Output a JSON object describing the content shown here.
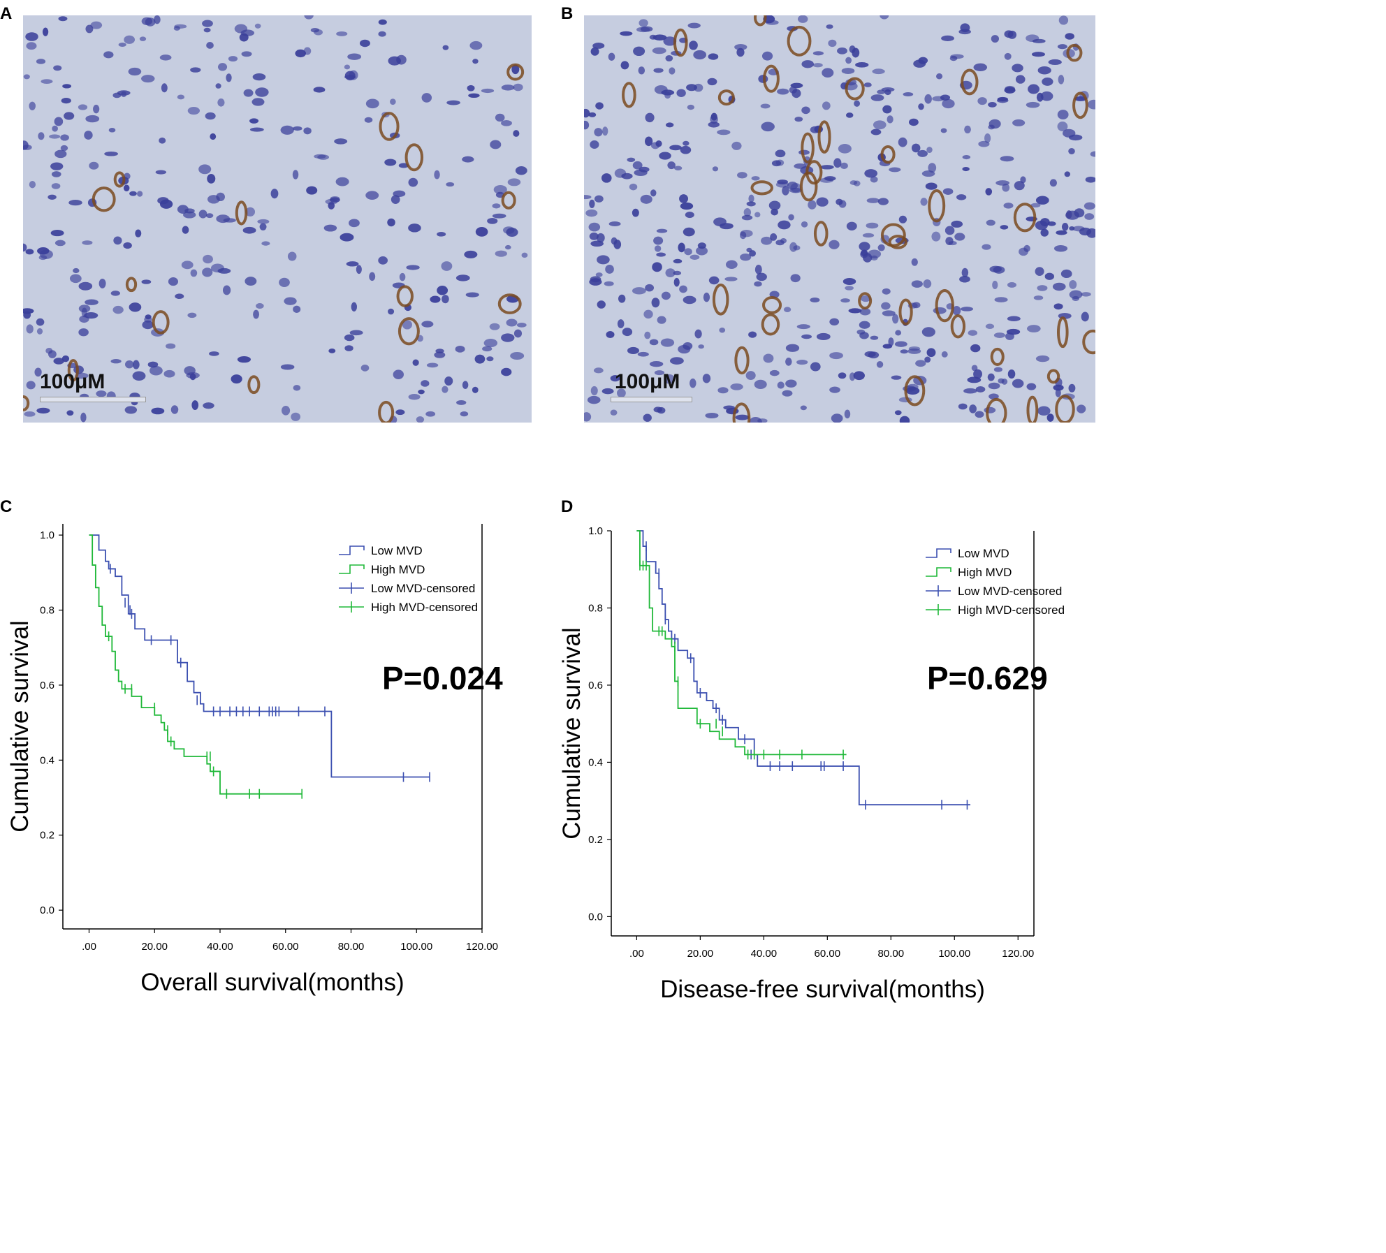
{
  "panels": {
    "A": {
      "letter": "A",
      "scale_label": "100μM"
    },
    "B": {
      "letter": "B",
      "scale_label": "100μM"
    },
    "C": {
      "letter": "C"
    },
    "D": {
      "letter": "D"
    }
  },
  "colors": {
    "low_mvd": "#3b4fb0",
    "high_mvd": "#1fb838",
    "tissue_bg": "#c6cde0",
    "nucleus": "#3a3f9a",
    "vessel": "#7a4a1e"
  },
  "chart_data": [
    {
      "type": "line",
      "subtype": "kaplan-meier",
      "xlabel": "Overall survival(months)",
      "ylabel": "Cumulative survival",
      "xlim": [
        -8,
        120
      ],
      "ylim": [
        -0.05,
        1.03
      ],
      "xticks": [
        0,
        20,
        40,
        60,
        80,
        100,
        120
      ],
      "xtick_labels": [
        ".00",
        "20.00",
        "40.00",
        "60.00",
        "80.00",
        "100.00",
        "120.00"
      ],
      "yticks": [
        0,
        0.2,
        0.4,
        0.6,
        0.8,
        1.0
      ],
      "ytick_labels": [
        "0.0",
        "0.2",
        "0.4",
        "0.6",
        "0.8",
        "1.0"
      ],
      "p_value_text": "P=0.024",
      "legend": {
        "position": "top-right",
        "entries": [
          "Low MVD",
          "High MVD",
          "Low MVD-censored",
          "High MVD-censored"
        ]
      },
      "series": [
        {
          "name": "Low MVD",
          "color_key": "low_mvd",
          "steps": [
            [
              0,
              1.0
            ],
            [
              3,
              0.96
            ],
            [
              5,
              0.93
            ],
            [
              6,
              0.91
            ],
            [
              8,
              0.89
            ],
            [
              10,
              0.84
            ],
            [
              12,
              0.79
            ],
            [
              14,
              0.75
            ],
            [
              17,
              0.72
            ],
            [
              27,
              0.66
            ],
            [
              30,
              0.61
            ],
            [
              32,
              0.58
            ],
            [
              34,
              0.55
            ],
            [
              35,
              0.53
            ],
            [
              74,
              0.355
            ],
            [
              104,
              0.355
            ]
          ],
          "censored": [
            [
              6.5,
              0.91
            ],
            [
              11,
              0.82
            ],
            [
              12.5,
              0.8
            ],
            [
              13,
              0.79
            ],
            [
              19,
              0.72
            ],
            [
              25,
              0.72
            ],
            [
              28,
              0.66
            ],
            [
              33,
              0.56
            ],
            [
              38,
              0.53
            ],
            [
              40,
              0.53
            ],
            [
              43,
              0.53
            ],
            [
              45,
              0.53
            ],
            [
              47,
              0.53
            ],
            [
              49,
              0.53
            ],
            [
              52,
              0.53
            ],
            [
              55,
              0.53
            ],
            [
              56,
              0.53
            ],
            [
              57,
              0.53
            ],
            [
              58,
              0.53
            ],
            [
              64,
              0.53
            ],
            [
              72,
              0.53
            ],
            [
              96,
              0.355
            ],
            [
              104,
              0.355
            ]
          ]
        },
        {
          "name": "High MVD",
          "color_key": "high_mvd",
          "steps": [
            [
              0,
              1.0
            ],
            [
              1,
              0.92
            ],
            [
              2,
              0.86
            ],
            [
              3,
              0.81
            ],
            [
              4,
              0.76
            ],
            [
              5,
              0.73
            ],
            [
              7,
              0.69
            ],
            [
              8,
              0.64
            ],
            [
              9,
              0.61
            ],
            [
              10,
              0.59
            ],
            [
              13,
              0.57
            ],
            [
              16,
              0.54
            ],
            [
              20,
              0.52
            ],
            [
              22,
              0.5
            ],
            [
              23,
              0.48
            ],
            [
              24,
              0.45
            ],
            [
              26,
              0.43
            ],
            [
              29,
              0.41
            ],
            [
              36,
              0.39
            ],
            [
              37,
              0.37
            ],
            [
              40,
              0.31
            ],
            [
              65,
              0.31
            ]
          ],
          "censored": [
            [
              6,
              0.73
            ],
            [
              11,
              0.59
            ],
            [
              13,
              0.59
            ],
            [
              20,
              0.54
            ],
            [
              24,
              0.48
            ],
            [
              25,
              0.45
            ],
            [
              36,
              0.41
            ],
            [
              37,
              0.41
            ],
            [
              38,
              0.37
            ],
            [
              42,
              0.31
            ],
            [
              49,
              0.31
            ],
            [
              52,
              0.31
            ],
            [
              65,
              0.31
            ]
          ]
        }
      ]
    },
    {
      "type": "line",
      "subtype": "kaplan-meier",
      "xlabel": "Disease-free survival(months)",
      "ylabel": "Cumulative survival",
      "xlim": [
        -8,
        125
      ],
      "ylim": [
        -0.05,
        1.0
      ],
      "xticks": [
        0,
        20,
        40,
        60,
        80,
        100,
        120
      ],
      "xtick_labels": [
        ".00",
        "20.00",
        "40.00",
        "60.00",
        "80.00",
        "100.00",
        "120.00"
      ],
      "yticks": [
        0,
        0.2,
        0.4,
        0.6,
        0.8,
        1.0
      ],
      "ytick_labels": [
        "0.0",
        "0.2",
        "0.4",
        "0.6",
        "0.8",
        "1.0"
      ],
      "p_value_text": "P=0.629",
      "legend": {
        "position": "top-right",
        "entries": [
          "Low MVD",
          "High MVD",
          "Low MVD-censored",
          "High MVD-censored"
        ]
      },
      "series": [
        {
          "name": "Low MVD",
          "color_key": "low_mvd",
          "steps": [
            [
              0,
              1.0
            ],
            [
              2,
              0.96
            ],
            [
              3,
              0.92
            ],
            [
              6,
              0.89
            ],
            [
              7,
              0.85
            ],
            [
              8,
              0.81
            ],
            [
              9,
              0.77
            ],
            [
              10,
              0.74
            ],
            [
              11,
              0.72
            ],
            [
              13,
              0.69
            ],
            [
              16,
              0.67
            ],
            [
              18,
              0.61
            ],
            [
              19,
              0.58
            ],
            [
              22,
              0.56
            ],
            [
              24,
              0.54
            ],
            [
              26,
              0.51
            ],
            [
              28,
              0.49
            ],
            [
              32,
              0.46
            ],
            [
              37,
              0.42
            ],
            [
              38,
              0.39
            ],
            [
              70,
              0.29
            ],
            [
              105,
              0.29
            ]
          ],
          "censored": [
            [
              3,
              0.96
            ],
            [
              7,
              0.89
            ],
            [
              9,
              0.77
            ],
            [
              12,
              0.72
            ],
            [
              17,
              0.67
            ],
            [
              20,
              0.58
            ],
            [
              25,
              0.54
            ],
            [
              27,
              0.51
            ],
            [
              34,
              0.46
            ],
            [
              36,
              0.42
            ],
            [
              42,
              0.39
            ],
            [
              45,
              0.39
            ],
            [
              49,
              0.39
            ],
            [
              58,
              0.39
            ],
            [
              59,
              0.39
            ],
            [
              65,
              0.39
            ],
            [
              72,
              0.29
            ],
            [
              96,
              0.29
            ],
            [
              104,
              0.29
            ]
          ]
        },
        {
          "name": "High MVD",
          "color_key": "high_mvd",
          "steps": [
            [
              0,
              1.0
            ],
            [
              1,
              0.91
            ],
            [
              4,
              0.8
            ],
            [
              5,
              0.74
            ],
            [
              9,
              0.72
            ],
            [
              11,
              0.7
            ],
            [
              12,
              0.61
            ],
            [
              13,
              0.54
            ],
            [
              19,
              0.5
            ],
            [
              23,
              0.48
            ],
            [
              26,
              0.46
            ],
            [
              31,
              0.44
            ],
            [
              34,
              0.42
            ],
            [
              66,
              0.42
            ]
          ],
          "censored": [
            [
              1,
              0.91
            ],
            [
              2,
              0.91
            ],
            [
              3,
              0.91
            ],
            [
              7,
              0.74
            ],
            [
              8,
              0.74
            ],
            [
              12,
              0.7
            ],
            [
              13,
              0.61
            ],
            [
              20,
              0.5
            ],
            [
              25,
              0.5
            ],
            [
              27,
              0.48
            ],
            [
              35,
              0.42
            ],
            [
              37,
              0.42
            ],
            [
              40,
              0.42
            ],
            [
              45,
              0.42
            ],
            [
              52,
              0.42
            ],
            [
              65,
              0.42
            ]
          ]
        }
      ]
    }
  ]
}
